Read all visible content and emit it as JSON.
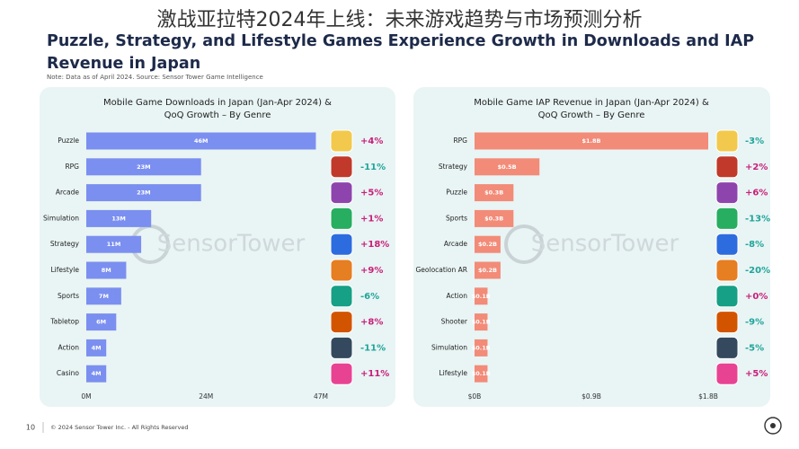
{
  "overlay_title": "激战亚拉特2024年上线：未来游戏趋势与市场预测分析",
  "title": "Puzzle, Strategy, and Lifestyle Games Experience Growth in Downloads and IAP Revenue in Japan",
  "note": "Note: Data as of April 2024. Source: Sensor Tower Game Intelligence",
  "footer": {
    "page": "10",
    "copyright": "© 2024 Sensor Tower Inc. - All Rights Reserved"
  },
  "chart_data": [
    {
      "type": "bar",
      "orientation": "horizontal",
      "title": "Mobile Game Downloads in Japan (Jan-Apr 2024) &\nQoQ Growth – By Genre",
      "watermark": "SensorTower",
      "categories": [
        "Puzzle",
        "RPG",
        "Arcade",
        "Simulation",
        "Strategy",
        "Lifestyle",
        "Sports",
        "Tabletop",
        "Action",
        "Casino"
      ],
      "values": [
        46,
        23,
        23,
        13,
        11,
        8,
        7,
        6,
        4,
        4
      ],
      "value_labels": [
        "46M",
        "23M",
        "23M",
        "13M",
        "11M",
        "8M",
        "7M",
        "6M",
        "4M",
        "4M"
      ],
      "growth_labels": [
        "+4%",
        "-11%",
        "+5%",
        "+1%",
        "+18%",
        "+9%",
        "-6%",
        "+8%",
        "-11%",
        "+11%"
      ],
      "color": "#7b8ff0",
      "xlim": [
        0,
        47
      ],
      "xticks": [
        {
          "value": 0,
          "label": "0M"
        },
        {
          "value": 24,
          "label": "24M"
        },
        {
          "value": 47,
          "label": "47M"
        }
      ]
    },
    {
      "type": "bar",
      "orientation": "horizontal",
      "title": "Mobile Game IAP Revenue in Japan (Jan-Apr 2024) &\nQoQ Growth – By Genre",
      "watermark": "SensorTower",
      "categories": [
        "RPG",
        "Strategy",
        "Puzzle",
        "Sports",
        "Arcade",
        "Geolocation AR",
        "Action",
        "Shooter",
        "Simulation",
        "Lifestyle"
      ],
      "values": [
        1.8,
        0.5,
        0.3,
        0.3,
        0.2,
        0.2,
        0.1,
        0.1,
        0.1,
        0.1
      ],
      "value_labels": [
        "$1.8B",
        "$0.5B",
        "$0.3B",
        "$0.3B",
        "$0.2B",
        "$0.2B",
        "$0.1B",
        "$0.1B",
        "$0.1B",
        "$0.1B"
      ],
      "growth_labels": [
        "-3%",
        "+2%",
        "+6%",
        "-13%",
        "-8%",
        "-20%",
        "+0%",
        "-9%",
        "-5%",
        "+5%"
      ],
      "color": "#f28b78",
      "xlim": [
        0,
        1.8
      ],
      "xticks": [
        {
          "value": 0,
          "label": "$0B"
        },
        {
          "value": 0.9,
          "label": "$0.9B"
        },
        {
          "value": 1.8,
          "label": "$1.8B"
        }
      ]
    }
  ]
}
